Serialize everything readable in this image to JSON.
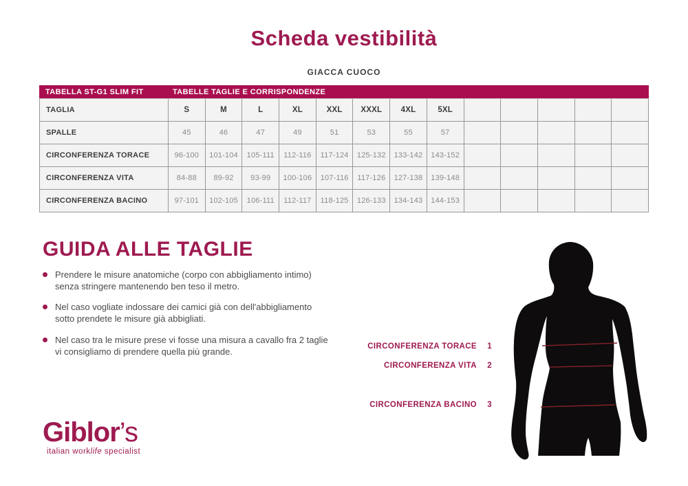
{
  "page": {
    "title": "Scheda vestibilità",
    "subtitle": "GIACCA CUOCO"
  },
  "colors": {
    "accent_maroon": "#9E1A50",
    "table_bar": "#A90F4E",
    "cell_background": "#F4F3F4",
    "cell_border": "#979797",
    "value_text": "#8A8A8A",
    "dark_text": "#3C3C3C",
    "measure_line_red": "#7D2128",
    "silhouette_black": "#0E0C0C"
  },
  "table": {
    "header_left": "TABELLA ST-G1 SLIM FIT",
    "header_right": "TABELLE TAGLIE E CORRISPONDENZE",
    "empty_trailing_columns": 5,
    "size_row": {
      "label": "TAGLIA",
      "values": [
        "S",
        "M",
        "L",
        "XL",
        "XXL",
        "XXXL",
        "4XL",
        "5XL",
        "",
        "",
        "",
        "",
        ""
      ]
    },
    "rows": [
      {
        "label": "SPALLE",
        "values": [
          "45",
          "46",
          "47",
          "49",
          "51",
          "53",
          "55",
          "57",
          "",
          "",
          "",
          "",
          ""
        ]
      },
      {
        "label": "CIRCONFERENZA TORACE",
        "values": [
          "96-100",
          "101-104",
          "105-111",
          "112-116",
          "117-124",
          "125-132",
          "133-142",
          "143-152",
          "",
          "",
          "",
          "",
          ""
        ]
      },
      {
        "label": "CIRCONFERENZA VITA",
        "values": [
          "84-88",
          "89-92",
          "93-99",
          "100-106",
          "107-116",
          "117-126",
          "127-138",
          "139-148",
          "",
          "",
          "",
          "",
          ""
        ]
      },
      {
        "label": "CIRCONFERENZA BACINO",
        "values": [
          "97-101",
          "102-105",
          "106-111",
          "112-117",
          "118-125",
          "126-133",
          "134-143",
          "144-153",
          "",
          "",
          "",
          "",
          ""
        ]
      }
    ]
  },
  "guide": {
    "heading": "GUIDA ALLE TAGLIE",
    "bullets": [
      "Prendere le misure anatomiche (corpo con abbigliamento intimo)\nsenza stringere mantenendo ben teso il metro.",
      "Nel caso vogliate indossare dei camici già con dell'abbigliamento\nsotto prendete le misure già abbigliati.",
      "Nel caso tra le misure prese vi fosse una misura a cavallo fra 2 taglie\nvi consigliamo di prendere quella più grande."
    ]
  },
  "measurements": [
    {
      "label": "CIRCONFERENZA TORACE",
      "number": "1"
    },
    {
      "label": "CIRCONFERENZA VITA",
      "number": "2"
    },
    {
      "label": "CIRCONFERENZA BACINO",
      "number": "3"
    }
  ],
  "logo": {
    "name": "Giblor",
    "suffix": "’s",
    "tagline_pre": "italian work",
    "tagline_italic": "life",
    "tagline_post": " specialist"
  }
}
